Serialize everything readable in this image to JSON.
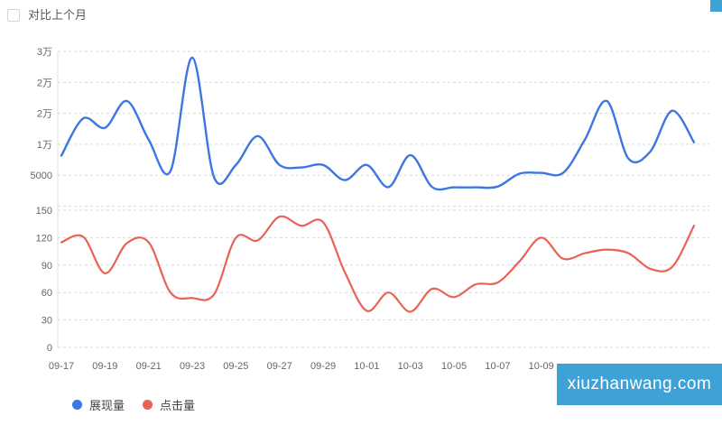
{
  "header": {
    "compare_label": "对比上个月",
    "compare_checked": false
  },
  "legend": {
    "items": [
      {
        "label": "展现量",
        "color": "#3b76e3"
      },
      {
        "label": "点击量",
        "color": "#e96254"
      }
    ]
  },
  "watermark": {
    "text": "xiuzhanwang.com",
    "bg": "#3fa2d6"
  },
  "colors": {
    "grid_line": "#d9d9d9",
    "axis_line": "#e0e0e0",
    "tick_text": "#666666"
  },
  "chart_data": {
    "type": "line",
    "smooth": true,
    "grid": "dashed horizontal, two stacked grids sharing one x-axis",
    "legend_position": "bottom-left",
    "x": [
      "09-17",
      "09-18",
      "09-19",
      "09-20",
      "09-21",
      "09-22",
      "09-23",
      "09-24",
      "09-25",
      "09-26",
      "09-27",
      "09-28",
      "09-29",
      "09-30",
      "10-01",
      "10-02",
      "10-03",
      "10-04",
      "10-05",
      "10-06",
      "10-07",
      "10-08",
      "10-09",
      "10-10",
      "10-11",
      "10-12",
      "10-13",
      "10-14",
      "10-15",
      "10-16"
    ],
    "x_axis_visible_ticks": [
      "09-17",
      "09-19",
      "09-21",
      "09-23",
      "09-25",
      "09-27",
      "09-29",
      "10-01",
      "10-03",
      "10-05",
      "10-07",
      "10-09"
    ],
    "upper_axis": {
      "min": 0,
      "max": 30000,
      "tick_labels": [
        "3万",
        "2万",
        "2万",
        "1万",
        "5000"
      ]
    },
    "lower_axis": {
      "min": 0,
      "max": 150,
      "tick_labels": [
        "150",
        "120",
        "90",
        "60",
        "30",
        "0"
      ]
    },
    "series": [
      {
        "name": "展现量",
        "grid": "upper",
        "color": "#3b76e3",
        "values": [
          9800,
          17000,
          15200,
          20400,
          12900,
          6800,
          28800,
          5600,
          8000,
          13600,
          8000,
          7500,
          8000,
          5050,
          8000,
          3700,
          9900,
          3700,
          3650,
          3650,
          3800,
          6300,
          6450,
          6450,
          12900,
          20400,
          9200,
          10600,
          18500,
          12400
        ]
      },
      {
        "name": "点击量",
        "grid": "lower",
        "color": "#e96254",
        "values": [
          115,
          121,
          81,
          114,
          115,
          60,
          54,
          58,
          120,
          117,
          143,
          133,
          137,
          82,
          40,
          60,
          39,
          64,
          55,
          69,
          71,
          94,
          120,
          97,
          103,
          107,
          103,
          86,
          88,
          133
        ]
      }
    ]
  }
}
